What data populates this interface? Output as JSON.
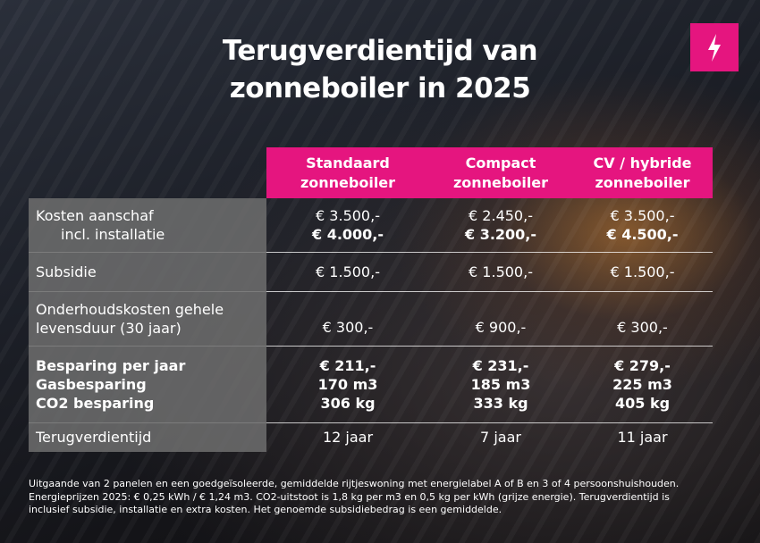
{
  "header": {
    "title": [
      "Terugverdientijd van",
      "zonneboiler in 2025"
    ]
  },
  "table": {
    "columns": [
      [
        "Standaard",
        "zonneboiler"
      ],
      [
        "Compact",
        "zonneboiler"
      ],
      [
        "CV / hybride",
        "zonneboiler"
      ]
    ],
    "rows": [
      {
        "label": [
          "Kosten aanschaf",
          "incl. installatie"
        ],
        "cells": [
          [
            "€ 3.500,-",
            "€ 4.000,-"
          ],
          [
            "€ 2.450,-",
            "€ 3.200,-"
          ],
          [
            "€ 3.500,-",
            "€ 4.500,-"
          ]
        ]
      },
      {
        "label": [
          "Subsidie"
        ],
        "cells": [
          [
            "€ 1.500,-"
          ],
          [
            "€ 1.500,-"
          ],
          [
            "€ 1.500,-"
          ]
        ]
      },
      {
        "label": [
          "Onderhoudskosten gehele",
          "levensduur (30 jaar)"
        ],
        "cells": [
          [
            "€ 300,-"
          ],
          [
            "€ 900,-"
          ],
          [
            "€ 300,-"
          ]
        ]
      },
      {
        "label": [
          "Besparing per jaar",
          "Gasbesparing",
          "CO2 besparing"
        ],
        "cells": [
          [
            "€ 211,-",
            "170 m3",
            "306 kg"
          ],
          [
            "€ 231,-",
            "185 m3",
            "333 kg"
          ],
          [
            "€ 279,-",
            "225 m3",
            "405 kg"
          ]
        ]
      },
      {
        "label": [
          "Terugverdientijd"
        ],
        "cells": [
          [
            "12 jaar"
          ],
          [
            "7 jaar"
          ],
          [
            "11 jaar"
          ]
        ]
      }
    ]
  },
  "footnote": [
    "Uitgaande van 2 panelen en een goedgeïsoleerde, gemiddelde rijtjeswoning met energielabel A of B en 3 of 4 persoonshuishouden.",
    "Energieprijzen 2025: € 0,25 kWh / € 1,24 m3. CO2-uitstoot is 1,8 kg per m3 en 0,5 kg per kWh (grijze energie). Terugverdientijd is",
    "inclusief subsidie, installatie en extra kosten. Het genoemde subsidiebedrag is een gemiddelde."
  ]
}
